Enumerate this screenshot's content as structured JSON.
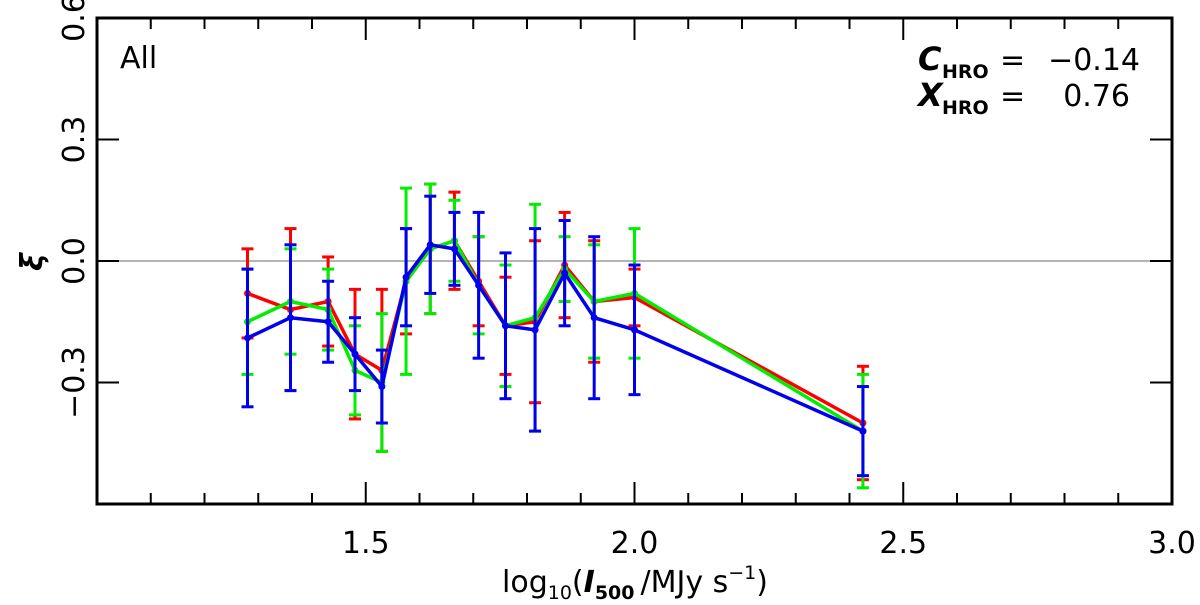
{
  "chart_data": {
    "type": "line",
    "panel_label": "All",
    "xlim": [
      1.0,
      3.0
    ],
    "ylim": [
      -0.6,
      0.6
    ],
    "x_ticks": [
      1.5,
      2.0,
      2.5,
      3.0
    ],
    "x_tick_labels": [
      "1.5",
      "2.0",
      "2.5",
      "3.0"
    ],
    "y_ticks": [
      0.6,
      0.3,
      0.0,
      -0.3
    ],
    "y_tick_labels": [
      "0.6",
      "0.3",
      "0.0",
      "−0.3"
    ],
    "reference_line_y": 0.0,
    "xlabel": {
      "prefix": "log",
      "prefix_sub": "10",
      "open": "(",
      "var": "I",
      "var_sub": "500",
      "unit": "/MJy s",
      "unit_sup": "−1",
      "close": ")"
    },
    "ylabel": "ξ",
    "annotations": [
      {
        "symbol": "C",
        "sub": "HRO",
        "eq": "=",
        "value": "−0.14"
      },
      {
        "symbol": "X",
        "sub": "HRO",
        "eq": "=",
        "value": "0.76"
      }
    ],
    "series": [
      {
        "name": "red",
        "color": "#ff0000",
        "x": [
          1.28,
          1.36,
          1.43,
          1.48,
          1.53,
          1.575,
          1.62,
          1.665,
          1.71,
          1.76,
          1.815,
          1.87,
          1.925,
          2.0,
          2.425
        ],
        "y": [
          -0.08,
          -0.12,
          -0.1,
          -0.23,
          -0.27,
          -0.05,
          0.03,
          0.05,
          -0.05,
          -0.16,
          -0.15,
          -0.01,
          -0.1,
          -0.09,
          -0.4
        ],
        "err": [
          0.11,
          0.2,
          0.11,
          0.16,
          0.2,
          0.13,
          0.16,
          0.12,
          0.11,
          0.12,
          0.2,
          0.13,
          0.15,
          0.07,
          0.14
        ]
      },
      {
        "name": "green",
        "color": "#00ee00",
        "x": [
          1.28,
          1.36,
          1.43,
          1.48,
          1.53,
          1.575,
          1.62,
          1.665,
          1.71,
          1.76,
          1.815,
          1.87,
          1.925,
          2.0,
          2.425
        ],
        "y": [
          -0.15,
          -0.1,
          -0.12,
          -0.27,
          -0.3,
          -0.05,
          0.03,
          0.05,
          -0.06,
          -0.16,
          -0.14,
          -0.02,
          -0.1,
          -0.08,
          -0.42
        ],
        "err": [
          0.13,
          0.13,
          0.1,
          0.11,
          0.17,
          0.23,
          0.16,
          0.1,
          0.12,
          0.15,
          0.28,
          0.08,
          0.14,
          0.16,
          0.14
        ]
      },
      {
        "name": "blue",
        "color": "#0000ee",
        "x": [
          1.28,
          1.36,
          1.43,
          1.48,
          1.53,
          1.575,
          1.62,
          1.665,
          1.71,
          1.76,
          1.815,
          1.87,
          1.925,
          2.0,
          2.425
        ],
        "y": [
          -0.19,
          -0.14,
          -0.15,
          -0.23,
          -0.31,
          -0.04,
          0.04,
          0.03,
          -0.06,
          -0.16,
          -0.17,
          -0.03,
          -0.14,
          -0.17,
          -0.42
        ],
        "err": [
          0.17,
          0.18,
          0.1,
          0.09,
          0.09,
          0.12,
          0.12,
          0.09,
          0.18,
          0.18,
          0.25,
          0.13,
          0.2,
          0.16,
          0.11
        ]
      }
    ]
  }
}
